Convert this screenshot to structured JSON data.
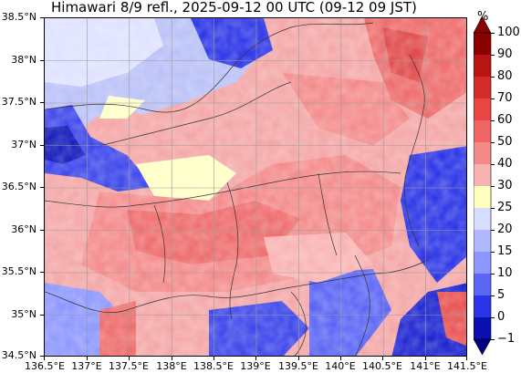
{
  "title": "Himawari 8/9 refl., 2025-09-12 00 UTC (09-12 09 JST)",
  "y_ticks": [
    "38.5°N",
    "38°N",
    "37.5°N",
    "37°N",
    "36.5°N",
    "36°N",
    "35.5°N",
    "35°N",
    "34.5°N"
  ],
  "x_ticks": [
    "136.5°E",
    "137°E",
    "137.5°E",
    "138°E",
    "138.5°E",
    "139°E",
    "139.5°E",
    "140°E",
    "140.5°E",
    "141°E",
    "141.5°E"
  ],
  "colorbar": {
    "unit": "%",
    "labels": [
      "100",
      "90",
      "80",
      "70",
      "60",
      "50",
      "40",
      "30",
      "25",
      "20",
      "15",
      "10",
      "5",
      "0",
      "−1"
    ],
    "colors_top_to_bottom": [
      "#8b0000",
      "#b81414",
      "#d62b2b",
      "#e84545",
      "#f06666",
      "#f58a8a",
      "#f9b3b3",
      "#ffffc0",
      "#d8dcff",
      "#b0b8ff",
      "#8c96ff",
      "#5a64f5",
      "#2a34e6",
      "#0a10b0"
    ],
    "extend_top_color": "#8b0000",
    "extend_bottom_color": "#000080"
  }
}
